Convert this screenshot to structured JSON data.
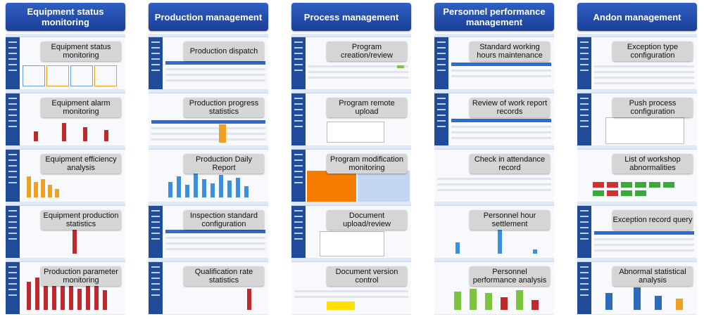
{
  "columns": [
    {
      "title": "Equipment status monitoring",
      "items": [
        "Equipment status monitoring",
        "Equipment alarm monitoring",
        "Equipment efficiency analysis",
        "Equipment production statistics",
        "Production parameter monitoring"
      ]
    },
    {
      "title": "Production management",
      "items": [
        "Production dispatch",
        "Production progress statistics",
        "Production Daily Report",
        "Inspection standard configuration",
        "Qualification rate statistics"
      ]
    },
    {
      "title": "Process management",
      "items": [
        "Program creation/review",
        "Program remote upload",
        "Program modification monitoring",
        "Document upload/review",
        "Document version control"
      ]
    },
    {
      "title": "Personnel performance management",
      "items": [
        "Standard working hours maintenance",
        "Review of work report records",
        "Check in attendance record",
        "Personnel hour settlement",
        "Personnel performance analysis"
      ]
    },
    {
      "title": "Andon management",
      "items": [
        "Exception type configuration",
        "Push process configuration",
        "List of workshop abnormalities",
        "Exception record query",
        "Abnormal statistical analysis"
      ]
    }
  ],
  "colors": {
    "header": "#1f4fb4",
    "pill": "#d5d5d5",
    "sidebar": "#1f4b9a",
    "bar_red": "#c0282c",
    "bar_blue": "#3b8fe0",
    "bar_orange": "#f0a020",
    "bar_green": "#7cc43c"
  }
}
